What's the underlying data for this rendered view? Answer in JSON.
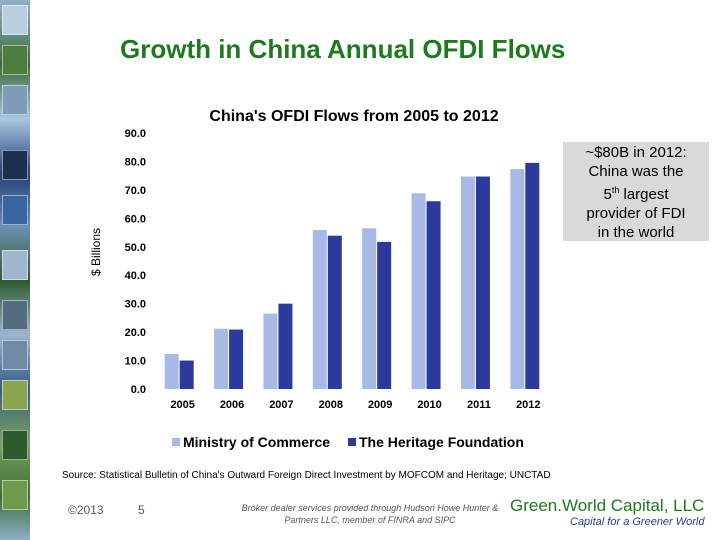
{
  "slide": {
    "title": "Growth in China Annual OFDI Flows",
    "source": "Source: Statistical Bulletin of China's Outward Foreign Direct Investment by MOFCOM and Heritage; UNCTAD",
    "footer": {
      "copyright": "©2013",
      "page": "5",
      "disclaimer": "Broker dealer services provided through Hudson Howe Hunter & Partners LLC, member of FINRA and SIPC",
      "brand": "Green.World Capital, LLC",
      "tagline": "Capital for a Greener World"
    }
  },
  "callout": {
    "line1": "~$80B in 2012:",
    "line2": "China was the",
    "line3_num": "5",
    "line3_sup": "th",
    "line3_rest": " largest",
    "line4": "provider of FDI",
    "line5": "in the world"
  },
  "colors": {
    "title": "#1f7a1f",
    "series1": "#a9b9e6",
    "series2": "#2c3a9e",
    "brand": "#1f7a1f",
    "tagline": "#2a3f8f"
  },
  "chart_data": {
    "type": "bar",
    "title": "China's OFDI Flows from 2005 to 2012",
    "ylabel": "$ Billions",
    "xlabel": "",
    "ylim": [
      0,
      90
    ],
    "yticks": [
      "0.0",
      "10.0",
      "20.0",
      "30.0",
      "40.0",
      "50.0",
      "60.0",
      "70.0",
      "80.0",
      "90.0"
    ],
    "categories": [
      "2005",
      "2006",
      "2007",
      "2008",
      "2009",
      "2010",
      "2011",
      "2012"
    ],
    "series": [
      {
        "name": "Ministry of Commerce",
        "values": [
          12.3,
          21.2,
          26.5,
          55.9,
          56.5,
          68.8,
          74.7,
          77.3
        ]
      },
      {
        "name": "The Heritage Foundation",
        "values": [
          10.0,
          20.9,
          30.0,
          53.9,
          51.7,
          66.0,
          74.7,
          79.5
        ]
      }
    ],
    "legend": "bottom",
    "grid": false
  }
}
